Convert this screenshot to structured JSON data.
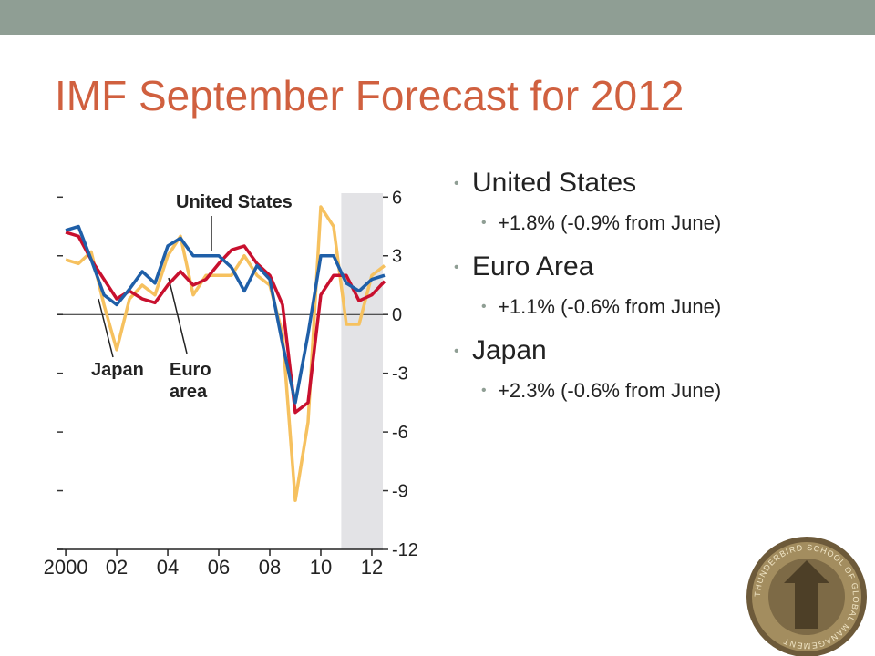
{
  "title": "IMF September Forecast for 2012",
  "bullets": [
    {
      "text": "United States",
      "sub": [
        "+1.8% (-0.9% from June)"
      ]
    },
    {
      "text": "Euro Area",
      "sub": [
        "+1.1% (-0.6% from June)"
      ]
    },
    {
      "text": "Japan",
      "sub": [
        "+2.3% (-0.6% from June)"
      ]
    }
  ],
  "logo_text": "THUNDERBIRD SCHOOL OF GLOBAL MANAGEMENT",
  "chart_data": {
    "type": "line",
    "annotations": [
      "United States",
      "Japan",
      "Euro area"
    ],
    "x": [
      2000,
      2000.5,
      2001,
      2001.5,
      2002,
      2002.5,
      2003,
      2003.5,
      2004,
      2004.5,
      2005,
      2005.5,
      2006,
      2006.5,
      2007,
      2007.5,
      2008,
      2008.5,
      2009,
      2009.5,
      2010,
      2010.5,
      2011,
      2011.5,
      2012,
      2012.5
    ],
    "series": [
      {
        "name": "Japan",
        "color": "#f6c15f",
        "values": [
          2.8,
          2.6,
          3.2,
          0.5,
          -1.8,
          0.8,
          1.5,
          1.0,
          3.0,
          4.0,
          1.0,
          2.0,
          2.0,
          2.0,
          3.0,
          2.0,
          1.5,
          -1.0,
          -9.5,
          -5.5,
          5.5,
          4.5,
          -0.5,
          -0.5,
          2.0,
          2.5
        ]
      },
      {
        "name": "Euro area",
        "color": "#c8102e",
        "values": [
          4.2,
          4.0,
          2.8,
          1.8,
          0.8,
          1.2,
          0.8,
          0.6,
          1.5,
          2.2,
          1.5,
          1.8,
          2.6,
          3.3,
          3.5,
          2.6,
          2.0,
          0.5,
          -5.0,
          -4.5,
          1.0,
          2.0,
          2.0,
          0.7,
          1.0,
          1.7
        ]
      },
      {
        "name": "United States",
        "color": "#1f5fa8",
        "values": [
          4.3,
          4.5,
          2.8,
          1.0,
          0.5,
          1.3,
          2.2,
          1.6,
          3.5,
          3.9,
          3.0,
          3.0,
          3.0,
          2.4,
          1.2,
          2.5,
          1.8,
          -1.5,
          -4.5,
          -1.0,
          3.0,
          3.0,
          1.6,
          1.2,
          1.8,
          2.0
        ]
      }
    ],
    "xlim": [
      1999.64,
      2012.43
    ],
    "xticks": [
      {
        "value": 2000,
        "label": "2000"
      },
      {
        "value": 2002,
        "label": "02"
      },
      {
        "value": 2004,
        "label": "04"
      },
      {
        "value": 2006,
        "label": "06"
      },
      {
        "value": 2008,
        "label": "08"
      },
      {
        "value": 2010,
        "label": "10"
      },
      {
        "value": 2012,
        "label": "12"
      }
    ],
    "ylim": [
      -12,
      6.2
    ],
    "yticks": [
      6,
      3,
      0,
      -3,
      -6,
      -9,
      -12
    ],
    "shaded_x": [
      2010.8,
      2012.43
    ],
    "shade_color": "#e3e3e6"
  }
}
